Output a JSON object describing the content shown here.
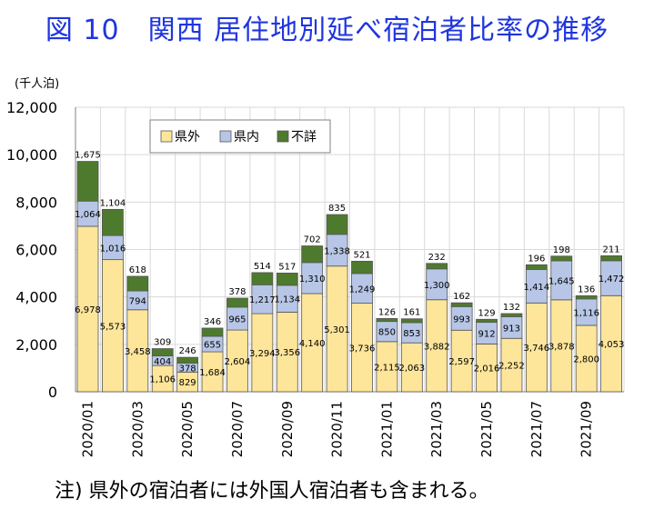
{
  "title": "図 10　関西 居住地別延べ宿泊者比率の推移",
  "note": "注) 県外の宿泊者には外国人宿泊者も含まれる。",
  "colors": {
    "県外": "#fde59a",
    "県内": "#b7c6e6",
    "不詳": "#4e7a2e"
  },
  "chart_data": {
    "type": "bar",
    "stacked": true,
    "title": "",
    "xlabel": "",
    "ylabel": "(千人泊)",
    "ylim": [
      0,
      12000
    ],
    "yticks": [
      0,
      2000,
      4000,
      6000,
      8000,
      10000,
      12000
    ],
    "ytick_labels": [
      "0",
      "2,000",
      "4,000",
      "6,000",
      "8,000",
      "10,000",
      "12,000"
    ],
    "grid": true,
    "legend_position": "top-left",
    "categories": [
      "2020/01",
      "2020/02",
      "2020/03",
      "2020/04",
      "2020/05",
      "2020/06",
      "2020/07",
      "2020/08",
      "2020/09",
      "2020/10",
      "2020/11",
      "2020/12",
      "2021/01",
      "2021/02",
      "2021/03",
      "2021/04",
      "2021/05",
      "2021/06",
      "2021/07",
      "2021/08",
      "2021/09",
      "2021/10"
    ],
    "xtick_labels": [
      "2020/01",
      "",
      "2020/03",
      "",
      "2020/05",
      "",
      "2020/07",
      "",
      "2020/09",
      "",
      "2020/11",
      "",
      "2021/01",
      "",
      "2021/03",
      "",
      "2021/05",
      "",
      "2021/07",
      "",
      "2021/09",
      ""
    ],
    "series": [
      {
        "name": "県外",
        "values": [
          6978,
          5573,
          3458,
          1106,
          829,
          1684,
          2604,
          3294,
          3356,
          4140,
          5301,
          3736,
          2115,
          2063,
          3882,
          2597,
          2016,
          2252,
          3746,
          3878,
          2800,
          4053
        ],
        "labels": [
          "6,978",
          "5,573",
          "3,458",
          "1,106",
          "829",
          "1,684",
          "2,604",
          "3,294",
          "3,356",
          "4,140",
          "5,301",
          "3,736",
          "2,115",
          "2,063",
          "3,882",
          "2,597",
          "2,016",
          "2,252",
          "3,746",
          "3,878",
          "2,800",
          "4,053"
        ]
      },
      {
        "name": "県内",
        "values": [
          1064,
          1016,
          794,
          404,
          378,
          655,
          965,
          1217,
          1134,
          1310,
          1338,
          1249,
          850,
          853,
          1300,
          993,
          912,
          913,
          1414,
          1645,
          1116,
          1472
        ],
        "labels": [
          "1,064",
          "1,016",
          "794",
          "404",
          "378",
          "655",
          "965",
          "1,217",
          "1,134",
          "1,310",
          "1,338",
          "1,249",
          "850",
          "853",
          "1,300",
          "993",
          "912",
          "913",
          "1,414",
          "1,645",
          "1,116",
          "1,472"
        ]
      },
      {
        "name": "不詳",
        "values": [
          1675,
          1104,
          618,
          309,
          246,
          346,
          378,
          514,
          517,
          702,
          835,
          521,
          126,
          161,
          232,
          162,
          129,
          132,
          196,
          198,
          136,
          211
        ],
        "labels": [
          "1,675",
          "1,104",
          "618",
          "309",
          "246",
          "346",
          "378",
          "514",
          "517",
          "702",
          "835",
          "521",
          "126",
          "161",
          "232",
          "162",
          "129",
          "132",
          "196",
          "198",
          "136",
          "211"
        ]
      }
    ]
  }
}
